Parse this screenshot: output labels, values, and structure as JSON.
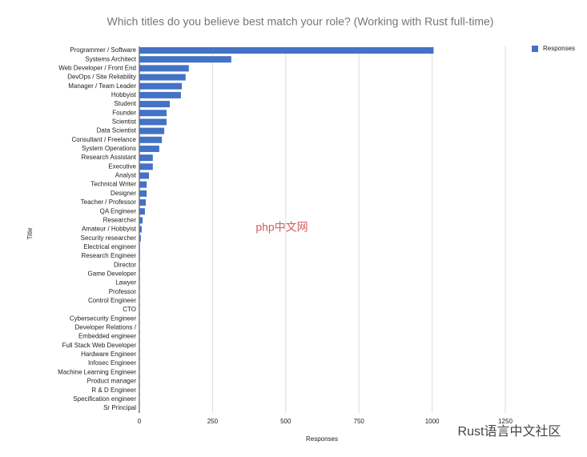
{
  "chart_data": {
    "type": "barh",
    "title": "Which titles do you believe best match your role? (Working with Rust full-time)",
    "x_label": "Responses",
    "y_label": "Title",
    "categories": [
      "Programmer / Software",
      "Systems Architect",
      "Web Developer / Front End",
      "DevOps / Site Reliability",
      "Manager / Team Leader",
      "Hobbyist",
      "Student",
      "Founder",
      "Scientist",
      "Data Scientist",
      "Consultant / Freelance",
      "System Operations",
      "Research Assistant",
      "Executive",
      "Analyst",
      "Technical Writer",
      "Designer",
      "Teacher / Professor",
      "QA Engineer",
      "Researcher",
      "Amateur / Hobbyist",
      "Security researcher",
      "Electrical engineer",
      "Research Engineer",
      "Director",
      "Game Developer",
      "Lawyer",
      "Professor",
      "Control Engineer",
      "CTO",
      "Cybersecurity Engineer",
      "Developer Relations /",
      "Embedded engineer",
      "Full Stack Web Developer",
      "Hardware Engineer",
      "Infosec Engineer",
      "Machine Learning Engineer",
      "Product manager",
      "R & D Engineer",
      "Specification engineer",
      "Sr Principal"
    ],
    "series": [
      {
        "name": "Responses",
        "color": "#4472c4",
        "values": [
          1005,
          314,
          169,
          158,
          145,
          142,
          104,
          93,
          93,
          85,
          77,
          68,
          46,
          46,
          33,
          25,
          25,
          22,
          19,
          11,
          8,
          5,
          2,
          2,
          1,
          1,
          1,
          1,
          1,
          1,
          1,
          1,
          1,
          1,
          1,
          1,
          1,
          1,
          1,
          1,
          1
        ]
      }
    ],
    "xlim": [
      0,
      1250
    ],
    "xticks": [
      0,
      250,
      500,
      750,
      1000,
      1250
    ],
    "grid": true,
    "legend": "top-right",
    "watermarks": [
      "php中文网",
      "Rust语言中文社区"
    ]
  }
}
